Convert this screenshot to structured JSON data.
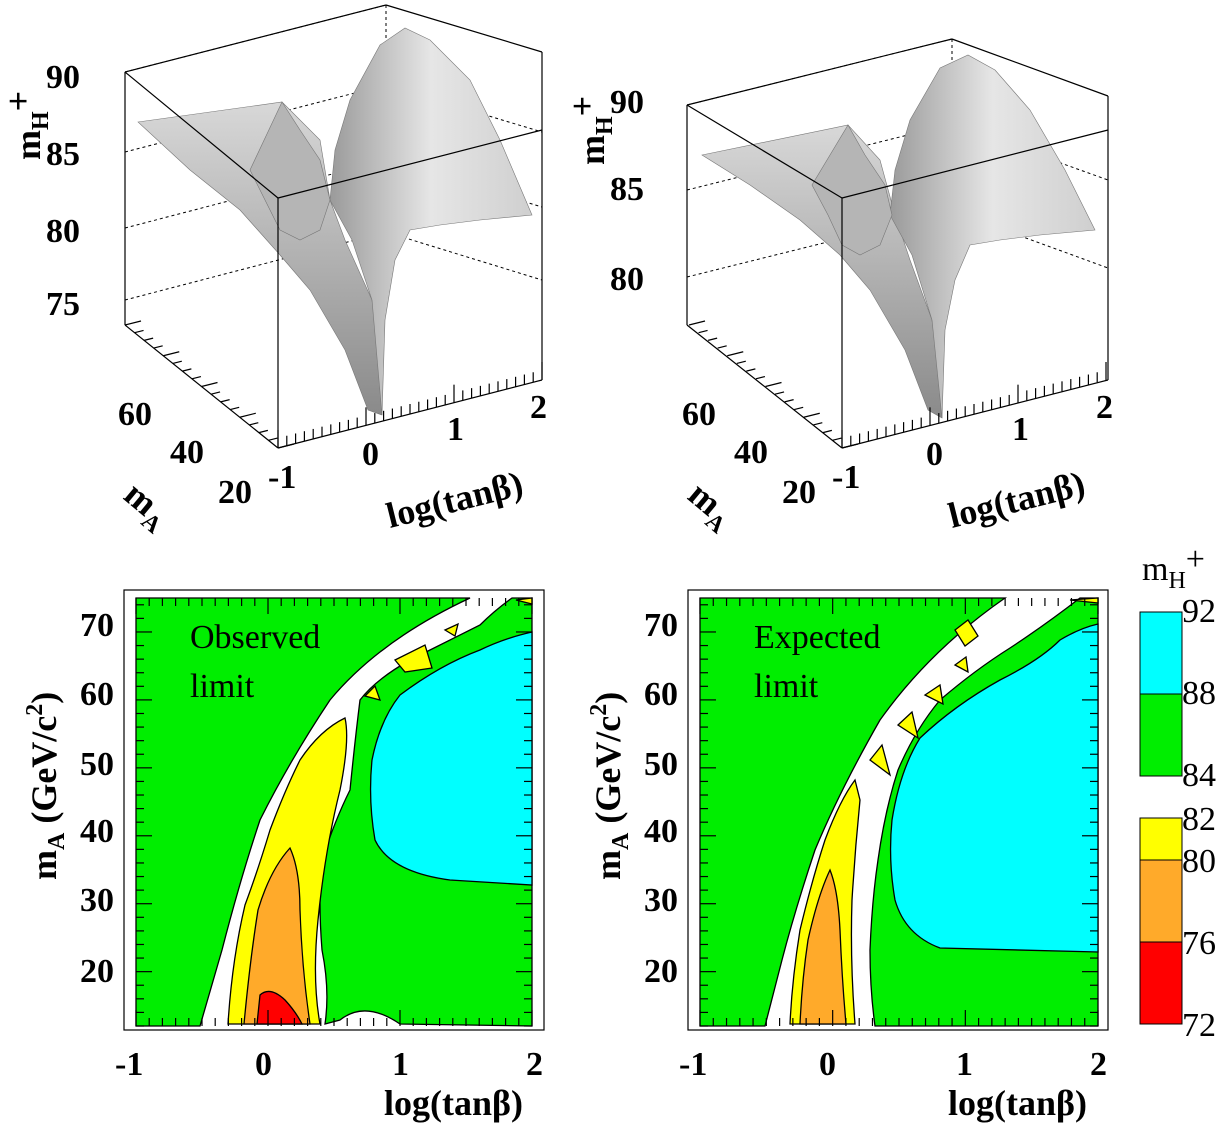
{
  "colors": {
    "red": "#ff0000",
    "orange": "#ffaa2a",
    "yellow": "#ffff00",
    "green": "#00ee00",
    "cyan": "#00ffff",
    "white": "#ffffff",
    "surface": "#c8c8c8"
  },
  "chart_data": [
    {
      "type": "surface",
      "panel": "top-left",
      "xlabel": "log(tanβ)",
      "ylabel": "m_A",
      "zlabel": "m_H+",
      "x_ticks": [
        "-1",
        "0",
        "1",
        "2"
      ],
      "y_ticks": [
        "20",
        "40",
        "60"
      ],
      "z_ticks": [
        "75",
        "80",
        "85",
        "90"
      ],
      "xlim": [
        -1,
        2
      ],
      "ylim": [
        12,
        75
      ],
      "zlim": [
        74,
        92
      ]
    },
    {
      "type": "surface",
      "panel": "top-right",
      "xlabel": "log(tanβ)",
      "ylabel": "m_A",
      "zlabel": "m_H+",
      "x_ticks": [
        "-1",
        "0",
        "1",
        "2"
      ],
      "y_ticks": [
        "20",
        "40",
        "60"
      ],
      "z_ticks": [
        "80",
        "85",
        "90"
      ],
      "xlim": [
        -1,
        2
      ],
      "ylim": [
        12,
        75
      ],
      "zlim": [
        77,
        92
      ]
    },
    {
      "type": "contour",
      "panel": "bottom-left",
      "annotation": [
        "Observed",
        "limit"
      ],
      "xlabel": "log(tanβ)",
      "ylabel": "m_A (GeV/c²)",
      "xlim": [
        -1,
        2
      ],
      "ylim": [
        12,
        75
      ],
      "x_ticks": [
        "-1",
        "0",
        "1",
        "2"
      ],
      "y_ticks": [
        "20",
        "30",
        "40",
        "50",
        "60",
        "70"
      ],
      "levels": [
        72,
        76,
        80,
        82,
        84,
        88,
        92
      ]
    },
    {
      "type": "contour",
      "panel": "bottom-right",
      "annotation": [
        "Expected",
        "limit"
      ],
      "xlabel": "log(tanβ)",
      "ylabel": "m_A (GeV/c²)",
      "xlim": [
        -1,
        2
      ],
      "ylim": [
        12,
        75
      ],
      "x_ticks": [
        "-1",
        "0",
        "1",
        "2"
      ],
      "y_ticks": [
        "20",
        "30",
        "40",
        "50",
        "60",
        "70"
      ],
      "levels": [
        72,
        76,
        80,
        82,
        84,
        88,
        92
      ]
    }
  ],
  "legend": {
    "title": "m_H+",
    "labels": [
      "92",
      "88",
      "84",
      "82",
      "80",
      "76",
      "72"
    ]
  }
}
